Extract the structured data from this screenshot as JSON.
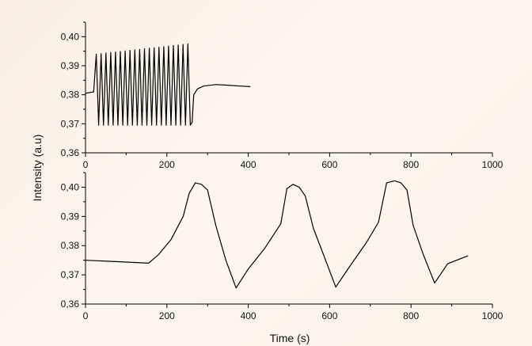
{
  "chart_data": [
    {
      "type": "line",
      "panel": "top",
      "xlim": [
        0,
        1000
      ],
      "ylim": [
        0.36,
        0.405
      ],
      "x_ticks": [
        "0",
        "200",
        "400",
        "600",
        "800",
        "1000"
      ],
      "y_ticks": [
        "0,36",
        "0,37",
        "0,38",
        "0,39",
        "0,40"
      ],
      "x_tick_values": [
        0,
        200,
        400,
        600,
        800,
        1000
      ],
      "y_tick_values": [
        0.36,
        0.37,
        0.38,
        0.39,
        0.4
      ],
      "grid": false,
      "series": [
        {
          "oscillation": {
            "x_start": 25,
            "x_end": 262,
            "cycles": 20,
            "high_start": 0.394,
            "high_end": 0.3975,
            "low": 0.3695
          },
          "x": [
            0,
            20,
            262,
            266,
            275,
            290,
            320,
            350,
            380,
            405
          ],
          "y": [
            0.3805,
            0.381,
            0.3705,
            0.38,
            0.382,
            0.383,
            0.3835,
            0.3833,
            0.383,
            0.3828
          ]
        }
      ]
    },
    {
      "type": "line",
      "panel": "bottom",
      "xlim": [
        0,
        1000
      ],
      "ylim": [
        0.36,
        0.405
      ],
      "x_ticks": [
        "0",
        "200",
        "400",
        "600",
        "800",
        "1000"
      ],
      "y_ticks": [
        "0,36",
        "0,37",
        "0,38",
        "0,39",
        "0,40"
      ],
      "x_tick_values": [
        0,
        200,
        400,
        600,
        800,
        1000
      ],
      "y_tick_values": [
        0.36,
        0.37,
        0.38,
        0.39,
        0.4
      ],
      "grid": false,
      "series": [
        {
          "x": [
            0,
            80,
            155,
            180,
            210,
            240,
            255,
            270,
            285,
            300,
            320,
            345,
            370,
            400,
            440,
            480,
            495,
            510,
            525,
            540,
            560,
            590,
            615,
            650,
            690,
            720,
            740,
            760,
            775,
            790,
            805,
            830,
            858,
            890,
            940
          ],
          "y": [
            0.375,
            0.3745,
            0.374,
            0.377,
            0.382,
            0.39,
            0.398,
            0.4015,
            0.401,
            0.399,
            0.387,
            0.375,
            0.3655,
            0.372,
            0.379,
            0.3875,
            0.3995,
            0.401,
            0.4,
            0.397,
            0.386,
            0.375,
            0.3658,
            0.373,
            0.381,
            0.388,
            0.4015,
            0.4022,
            0.4015,
            0.399,
            0.387,
            0.377,
            0.3672,
            0.3738,
            0.3765
          ]
        }
      ]
    }
  ],
  "axes": {
    "ylabel": "Intensity (a.u)",
    "xlabel": "Time (s)"
  },
  "colors": {
    "line": "#000000",
    "axis": "#000000"
  }
}
